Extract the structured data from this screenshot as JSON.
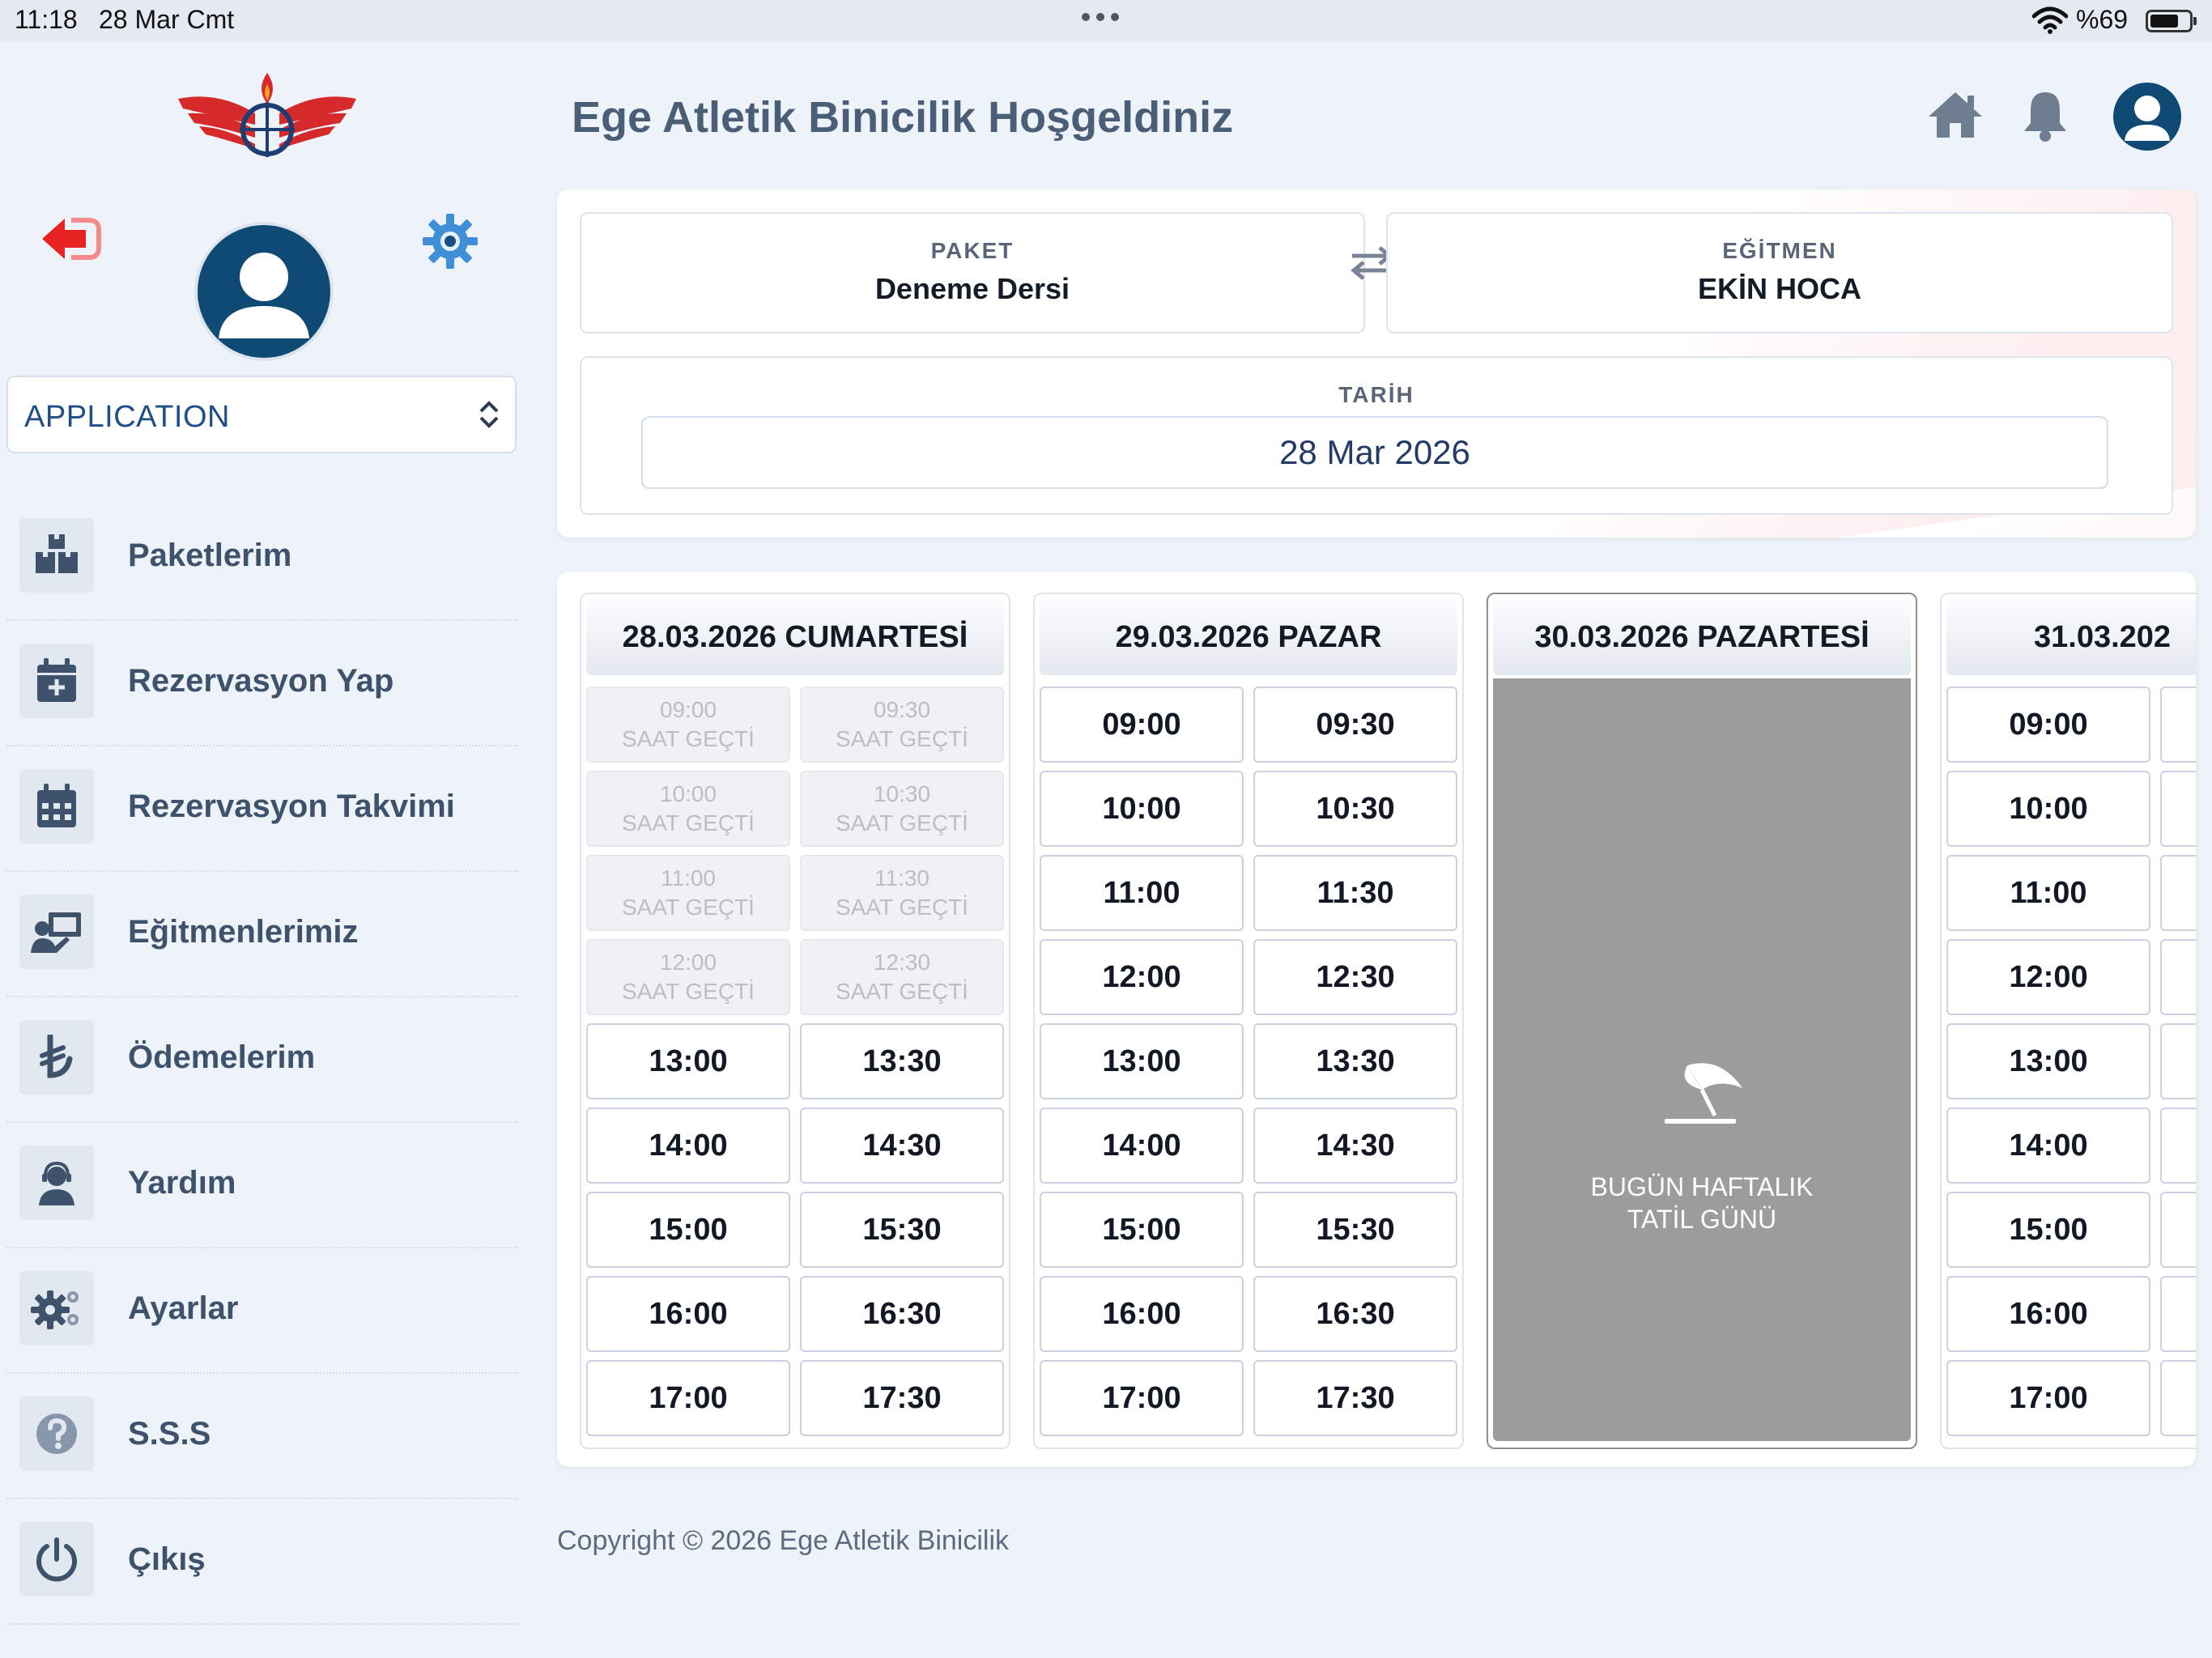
{
  "status_bar": {
    "time": "11:18",
    "date": "28 Mar Cmt",
    "battery": "%69"
  },
  "sidebar": {
    "workspace_select": {
      "value": "APPLICATION"
    },
    "menu": [
      {
        "label": "Paketlerim",
        "icon": "boxes-icon"
      },
      {
        "label": "Rezervasyon Yap",
        "icon": "calendar-plus-icon"
      },
      {
        "label": "Rezervasyon Takvimi",
        "icon": "calendar-grid-icon"
      },
      {
        "label": "Eğitmenlerimiz",
        "icon": "instructor-icon"
      },
      {
        "label": "Ödemelerim",
        "icon": "lira-icon"
      },
      {
        "label": "Yardım",
        "icon": "support-icon"
      },
      {
        "label": "Ayarlar",
        "icon": "gears-icon"
      },
      {
        "label": "S.S.S",
        "icon": "question-icon"
      },
      {
        "label": "Çıkış",
        "icon": "power-icon"
      }
    ]
  },
  "header": {
    "title": "Ege Atletik Binicilik Hoşgeldiniz"
  },
  "booking": {
    "package": {
      "caption": "PAKET",
      "value": "Deneme Dersi"
    },
    "instructor": {
      "caption": "EĞİTMEN",
      "value": "EKİN HOCA"
    },
    "date": {
      "caption": "TARİH",
      "value": "28 Mar 2026"
    }
  },
  "calendar": {
    "past_label": "SAAT GEÇTİ",
    "days": [
      {
        "title": "28.03.2026 CUMARTESİ",
        "past": [
          "09:00",
          "09:30",
          "10:00",
          "10:30",
          "11:00",
          "11:30",
          "12:00",
          "12:30"
        ],
        "slots": [
          "13:00",
          "13:30",
          "14:00",
          "14:30",
          "15:00",
          "15:30",
          "16:00",
          "16:30",
          "17:00",
          "17:30"
        ]
      },
      {
        "title": "29.03.2026 PAZAR",
        "slots": [
          "09:00",
          "09:30",
          "10:00",
          "10:30",
          "11:00",
          "11:30",
          "12:00",
          "12:30",
          "13:00",
          "13:30",
          "14:00",
          "14:30",
          "15:00",
          "15:30",
          "16:00",
          "16:30",
          "17:00",
          "17:30"
        ]
      },
      {
        "title": "30.03.2026 PAZARTESİ",
        "holiday_line1": "BUGÜN HAFTALIK",
        "holiday_line2": "TATİL GÜNÜ"
      },
      {
        "title": "31.03.202",
        "slots": [
          "09:00",
          "10:00",
          "11:00",
          "12:00",
          "13:00",
          "14:00",
          "15:00",
          "16:00",
          "17:00"
        ]
      }
    ]
  },
  "footer": {
    "copyright": "Copyright © 2026 Ege Atletik Binicilik"
  },
  "colors": {
    "brand_dark": "#0e4a73",
    "exit_red": "#e62222",
    "gear_blue": "#3f8fd8",
    "holiday_gray": "#9c9c9c"
  }
}
